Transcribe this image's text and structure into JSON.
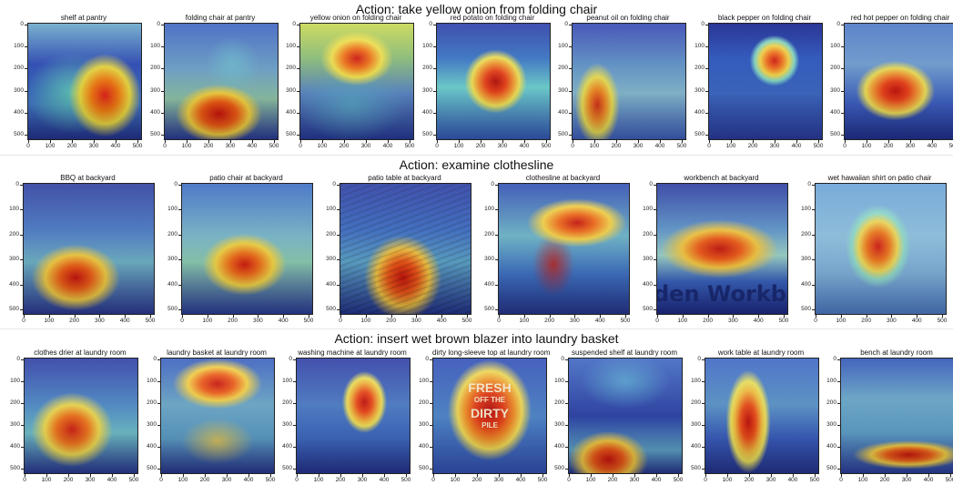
{
  "rows": [
    {
      "title": "Action: take yellow onion from folding chair",
      "panels": [
        {
          "label": "shelf at pantry",
          "bg": "radial-gradient(ellipse 40% 45% at 68% 62%, #e0251a 0%, #f07c14 30%, #e9d842 55%, rgba(110,205,200,0.0) 80%), radial-gradient(ellipse 60% 50% at 40% 60%, #5fc6b9 0%, rgba(60,120,200,0) 70%), linear-gradient(180deg,#6aa7c9 0%,#2d4bb5 35%,#3f74c2 70%,#25338f 100%)"
        },
        {
          "label": "folding chair at pantry",
          "bg": "radial-gradient(ellipse 45% 30% at 48% 78%, #c8140f 0%, #ef5d15 35%, #f2d142 60%, rgba(120,210,190,0) 85%), radial-gradient(ellipse 30% 30% at 60% 35%, rgba(110,200,210,0.6) 0%, rgba(0,0,0,0) 80%), linear-gradient(180deg,#3c63bf 0%,#6ea2c8 40%,#8ec1a4 65%,#2a3b98 100%)"
        },
        {
          "label": "yellow onion on folding chair",
          "bg": "radial-gradient(ellipse 38% 28% at 50% 30%, #cf1a12 0%, #f0711a 30%, #f0e04e 58%, rgba(140,210,160,0) 85%), radial-gradient(ellipse 60% 40% at 45% 70%, rgba(90,170,200,0.8) 0%, rgba(0,0,0,0) 80%), linear-gradient(180deg,#c7d650 0%,#8cbf7a 30%,#5d88c4 60%,#263a98 100%)"
        },
        {
          "label": "red potato on folding chair",
          "bg": "radial-gradient(ellipse 30% 30% at 52% 50%, #b5130f 0%, #e8421b 30%, #f3a23a 55%, #efe359 70%, rgba(110,210,210,0) 92%), linear-gradient(180deg,#2a3ca6 0%,#3b76c6 30%,#6fd0d0 55%,#3559b8 100%)"
        },
        {
          "label": "peanut oil on folding chair",
          "bg": "radial-gradient(ellipse 22% 40% at 22% 70%, #d5331a 0%, #f0902a 35%, #e9de56 60%, rgba(110,200,200,0) 90%), linear-gradient(180deg,#3446b1 0%,#5f92c8 35%,#86b9cf 60%,#3d5fbd 100%)"
        },
        {
          "label": "black pepper on folding chair",
          "bg": "radial-gradient(ellipse 22% 22% at 58% 32%, #d11c13 0%, #f06c1d 30%, #f1d446 58%, #80d3c4 80%, rgba(50,90,190,0) 100%), linear-gradient(180deg,#13208a 0%,#2a55bf 30%,#3d69c1 60%,#2c3c9f 100%)"
        },
        {
          "label": "red hot pepper on folding chair",
          "bg": "radial-gradient(ellipse 38% 28% at 45% 58%, #c2150f 0%, #e9431c 30%, #f2a13a 55%, #ebde59 70%, rgba(110,200,200,0) 92%), linear-gradient(180deg,#4c77c5 0%,#6f9dd0 35%,#3d5ec0 70%,#21318e 100%)"
        }
      ]
    },
    {
      "title": "Action: examine clothesline",
      "panels": [
        {
          "label": "BBQ at backyard",
          "bg": "radial-gradient(ellipse 40% 30% at 40% 72%, #c8150f 0%, #ec5f19 30%, #f1cc45 58%, rgba(120,210,190,0) 85%), linear-gradient(180deg,#2e3e9d 0%,#4b79c4 35%,#6fb0c5 60%,#2d3a96 100%)"
        },
        {
          "label": "patio chair at backyard",
          "bg": "radial-gradient(ellipse 38% 28% at 48% 62%, #d01d12 0%, #ee6f1d 30%, #f0d347 58%, rgba(140,215,190,0) 85%), linear-gradient(180deg,#3b6cc2 0%,#7ab6c9 40%,#8bc9b0 60%,#2c3d9a 100%)"
        },
        {
          "label": "patio table at backyard",
          "bg": "repeating-linear-gradient(160deg, rgba(0,0,0,0.12) 0 2px, rgba(0,0,0,0) 2px 6px), radial-gradient(ellipse 35% 38% at 48% 72%, #c8140f 0%, #ec5719 32%, #f0c344 58%, rgba(120,210,200,0) 85%), linear-gradient(180deg,#2b3ea3 0%,#3d6cc2 35%,#5da2c7 60%,#25358f 100%)"
        },
        {
          "label": "clothesline at backyard",
          "bg": "radial-gradient(ellipse 45% 22% at 60% 30%, #c8180f 0%, #ee6a1c 30%, #f2d149 58%, rgba(130,210,190,0) 85%), radial-gradient(ellipse 20% 30% at 42% 62%, rgba(200,30,20,0.8) 0%, rgba(0,0,0,0) 80%), linear-gradient(180deg,#2f4eb0 0%,#6fb5c9 40%,#3f70c2 70%,#27378f 100%)"
        },
        {
          "label": "workbench at backyard",
          "bg": "radial-gradient(ellipse 50% 25% at 48% 50%, #c41a12 0%, #ec5b1b 32%, #f1c643 58%, rgba(120,210,200,0) 90%), linear-gradient(180deg,#2b3ba0 0%,#5e95c9 35%,#9bd0c6 55%,#3a62bd 75%,#1e2a85 100%)",
          "overlay": "den Workbe"
        },
        {
          "label": "wet hawaiian shirt on patio chair",
          "bg": "radial-gradient(ellipse 25% 32% at 48% 48%, #d1211a 0%, #ee7a22 35%, #eed85a 60%, #8fdacc 80%, rgba(80,150,210,0) 100%), linear-gradient(180deg,#6aa3d6 0%,#8fc1df 40%,#7fb0da 70%,#4f7cc6 100%)"
        }
      ]
    },
    {
      "title": "Action: insert wet brown blazer into laundry basket",
      "panels": [
        {
          "label": "clothes drier at laundry room",
          "bg": "radial-gradient(ellipse 40% 36% at 42% 62%, #d0251a 0%, #ef7720 35%, #eed952 60%, rgba(120,210,200,0) 90%), linear-gradient(180deg,#2d3da4 0%,#4f8ac7 40%,#6fbdc8 65%,#2a3994 100%)"
        },
        {
          "label": "laundry basket at laundry room",
          "bg": "radial-gradient(ellipse 45% 25% at 50% 22%, #c9170f 0%, #ec5d1c 32%, #f2cf48 58%, rgba(130,215,190,0) 88%), radial-gradient(ellipse 40% 25% at 50% 72%, rgba(240,200,70,0.8) 0%, rgba(0,0,0,0) 80%), linear-gradient(180deg,#3a5fbd 0%,#6ca8c8 40%,#5c9bc5 70%,#28378f 100%)"
        },
        {
          "label": "washing machine at laundry room",
          "bg": "radial-gradient(ellipse 22% 30% at 60% 38%, #c1140f 0%, #ea4a1b 30%, #f1b13e 55%, #ebdf5a 70%, rgba(110,200,210,0) 90%), linear-gradient(180deg,#2e3ea5 0%,#4d7cc5 40%,#3f69c0 70%,#26348f 100%)"
        },
        {
          "label": "dirty long-sleeve top at laundry room",
          "bg": "radial-gradient(ellipse 42% 50% at 50% 45%, #b8120e 0%, #e23e1a 30%, #ef8a28 50%, #efd957 68%, rgba(110,200,210,0) 88%), linear-gradient(180deg,#3250b6 0%,#4f86c8 50%,#3352b5 100%)",
          "overlay_lines": [
            "FRESH",
            "OFF THE",
            "DIRTY",
            "PILE"
          ]
        },
        {
          "label": "suspended shelf at laundry room",
          "bg": "radial-gradient(ellipse 40% 28% at 35% 88%, #c8140f 0%, #ec581a 32%, #f1c845 58%, rgba(120,210,200,0) 88%), radial-gradient(ellipse 50% 30% at 50% 20%, rgba(90,170,210,0.8) 0%, rgba(0,0,0,0) 80%), linear-gradient(180deg,#3f67c1 0%,#2d43a6 50%,#5da0c6 80%,#27378f 100%)"
        },
        {
          "label": "work table at laundry room",
          "bg": "radial-gradient(ellipse 22% 50% at 38% 55%, #c1140f 0%, #e94e1b 30%, #f1be42 55%, #e9e05e 70%, rgba(110,200,210,0) 90%), linear-gradient(180deg,#3d66c2 0%,#5a94c8 40%,#3a5cbb 70%,#25348e 100%)"
        },
        {
          "label": "bench at laundry room",
          "bg": "radial-gradient(ellipse 55% 14% at 60% 84%, #c8170f 0%, #ec5f1b 35%, #f1cd47 60%, rgba(130,210,195,0) 90%), linear-gradient(180deg,#3054b7 0%,#6aa8c9 35%,#5f9ec8 65%,#2c3e9d 100%)"
        }
      ]
    }
  ],
  "axis": {
    "y_ticks": [
      "0",
      "100",
      "200",
      "300",
      "400",
      "500"
    ],
    "x_ticks": [
      "0",
      "100",
      "200",
      "300",
      "400",
      "500"
    ]
  }
}
